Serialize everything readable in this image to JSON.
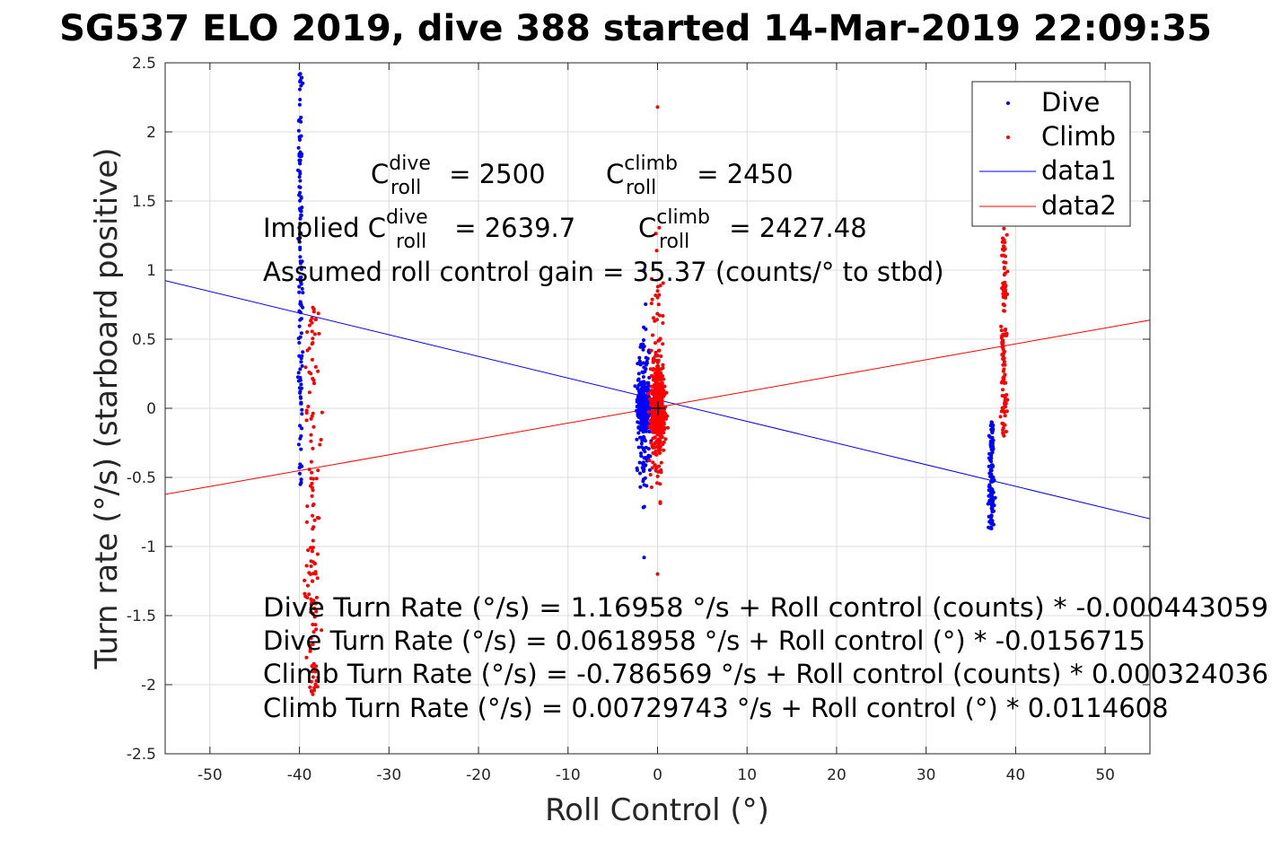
{
  "chart_data": {
    "type": "scatter",
    "title": "SG537 ELO 2019, dive 388 started 14-Mar-2019 22:09:35",
    "xlabel": "Roll Control (°)",
    "ylabel": "Turn rate (°/s) (starboard positive)",
    "xlim": [
      -55,
      55
    ],
    "ylim": [
      -2.5,
      2.5
    ],
    "x_ticks": [
      "-50",
      "-40",
      "-30",
      "-20",
      "-10",
      "0",
      "10",
      "20",
      "30",
      "40",
      "50"
    ],
    "x_tick_values": [
      -50,
      -40,
      -30,
      -20,
      -10,
      0,
      10,
      20,
      30,
      40,
      50
    ],
    "y_ticks": [
      "2.5",
      "2",
      "1.5",
      "1",
      "0.5",
      "0",
      "-0.5",
      "-1",
      "-1.5",
      "-2",
      "-2.5"
    ],
    "y_tick_values": [
      2.5,
      2,
      1.5,
      1,
      0.5,
      0,
      -0.5,
      -1,
      -1.5,
      -2,
      -2.5
    ],
    "grid": true,
    "legend_position": "top-right",
    "legend": [
      "Dive",
      "Climb",
      "data1",
      "data2"
    ],
    "colors": {
      "dive": "#0000ff",
      "climb": "#ff0000"
    },
    "series": [
      {
        "name": "Dive",
        "marker": "dot",
        "clusters": [
          {
            "x": -39.9,
            "x_spread": 0.4,
            "y_min": -0.55,
            "y_max": 2.42
          },
          {
            "x": -1.5,
            "x_spread": 1.2,
            "y_min": -1.08,
            "y_max": 1.0
          },
          {
            "x": 37.3,
            "x_spread": 0.5,
            "y_min": -0.87,
            "y_max": -0.1
          }
        ]
      },
      {
        "name": "Climb",
        "marker": "dot",
        "clusters": [
          {
            "x": -38.5,
            "x_spread": 1.3,
            "y_min": -2.07,
            "y_max": 0.73
          },
          {
            "x": 0.0,
            "x_spread": 1.4,
            "y_min": -1.2,
            "y_max": 2.18
          },
          {
            "x": 38.7,
            "x_spread": 0.6,
            "y_min": -0.2,
            "y_max": 1.3
          }
        ]
      },
      {
        "name": "data1",
        "type": "line",
        "x": [
          -55,
          55
        ],
        "y": [
          0.924,
          -0.8
        ]
      },
      {
        "name": "data2",
        "type": "line",
        "x": [
          -55,
          55
        ],
        "y": [
          -0.623,
          0.638
        ]
      }
    ],
    "annotations": {
      "c_dive_base": "C",
      "c_dive_sup": "dive",
      "c_dive_sub": "roll",
      "c_dive_val": " = 2500",
      "c_climb_base": "C",
      "c_climb_sup": "climb",
      "c_climb_sub": "roll",
      "c_climb_val": " = 2450",
      "implied_prefix": "Implied C",
      "implied_dive_sup": "dive",
      "implied_dive_sub": "roll",
      "implied_dive_val": " = 2639.7",
      "implied_climb_base": "C",
      "implied_climb_sup": "climb",
      "implied_climb_sub": "roll",
      "implied_climb_val": " = 2427.48",
      "gain": "Assumed roll control gain = 35.37 (counts/° to stbd)",
      "eq1": "Dive Turn Rate (°/s) = 1.16958 °/s + Roll control (counts) * -0.000443059",
      "eq2": "Dive Turn Rate (°/s) = 0.0618958 °/s + Roll control (°) * -0.0156715",
      "eq3": "Climb Turn Rate (°/s) = -0.786569 °/s + Roll control (counts) * 0.000324036",
      "eq4": "Climb Turn Rate (°/s) = 0.00729743 °/s + Roll control (°) * 0.0114608"
    }
  }
}
